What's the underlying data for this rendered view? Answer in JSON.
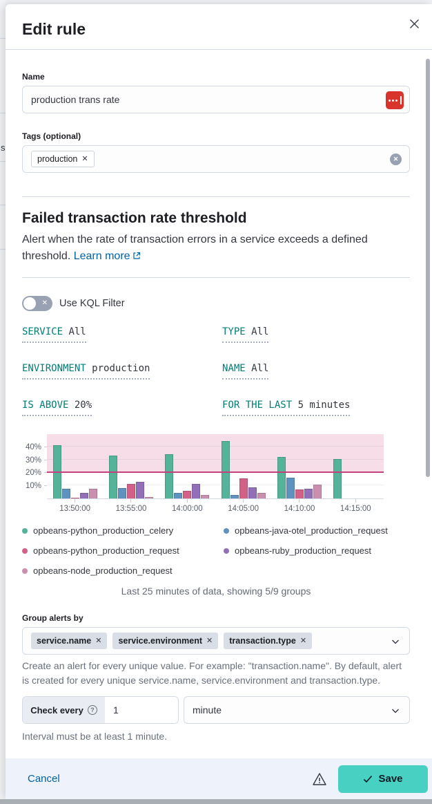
{
  "header": {
    "title": "Edit rule"
  },
  "fields": {
    "name": {
      "label": "Name",
      "value": "production trans rate"
    },
    "tags": {
      "label": "Tags (optional)",
      "tags": [
        "production"
      ]
    }
  },
  "rule": {
    "title": "Failed transaction rate threshold",
    "description": "Alert when the rate of transaction errors in a service exceeds a defined threshold.",
    "learn_more_label": "Learn more"
  },
  "kql_filter": {
    "label": "Use KQL Filter",
    "enabled": false
  },
  "expressions": [
    {
      "label": "SERVICE",
      "value": "All"
    },
    {
      "label": "TYPE",
      "value": "All"
    },
    {
      "label": "ENVIRONMENT",
      "value": "production"
    },
    {
      "label": "NAME",
      "value": "All"
    },
    {
      "label": "IS ABOVE",
      "value": "20%"
    },
    {
      "label": "FOR THE LAST",
      "value": "5 minutes"
    }
  ],
  "chart_data": {
    "type": "bar",
    "categories": [
      "13:50:00",
      "13:55:00",
      "14:00:00",
      "14:05:00",
      "14:10:00",
      "14:15:00"
    ],
    "series": [
      {
        "name": "opbeans-python_production_celery",
        "color": "#54B399",
        "values": [
          41,
          33,
          34,
          44,
          32,
          30.5
        ]
      },
      {
        "name": "opbeans-java-otel_production_request",
        "color": "#6092C0",
        "values": [
          7.5,
          8,
          4.5,
          2.5,
          16,
          0
        ]
      },
      {
        "name": "opbeans-python_production_request",
        "color": "#D36086",
        "values": [
          0.5,
          11,
          6,
          15.5,
          7,
          0
        ]
      },
      {
        "name": "opbeans-ruby_production_request",
        "color": "#9170B8",
        "values": [
          4,
          12.5,
          11,
          8.5,
          7.5,
          0
        ]
      },
      {
        "name": "opbeans-node_production_request",
        "color": "#CA8EAE",
        "values": [
          7.5,
          1,
          2.5,
          4,
          10.5,
          0
        ]
      }
    ],
    "ylabel": "",
    "xlabel": "",
    "ylim": [
      0,
      50
    ],
    "yticks": [
      {
        "value": 10,
        "label": "10%"
      },
      {
        "value": 20,
        "label": "20%"
      },
      {
        "value": 30,
        "label": "30%"
      },
      {
        "value": 40,
        "label": "40%"
      }
    ],
    "threshold": {
      "value": 20,
      "line_color": "#C6417C",
      "band_color": "rgba(204,51,119,0.17)"
    },
    "grid": true,
    "legend_position": "bottom",
    "caption": "Last 25 minutes of data, showing 5/9 groups"
  },
  "group_by": {
    "label": "Group alerts by",
    "values": [
      "service.name",
      "service.environment",
      "transaction.type"
    ],
    "help": "Create an alert for every unique value. For example: \"transaction.name\". By default, alert is created for every unique service.name, service.environment and transaction.type."
  },
  "schedule": {
    "label": "Check every",
    "value": "1",
    "unit": "minute",
    "hint": "Interval must be at least 1 minute."
  },
  "footer": {
    "cancel_label": "Cancel",
    "save_label": "Save"
  },
  "background": {
    "clipped_text": "s"
  },
  "colors": {
    "accent_teal": "#017D73",
    "link_blue": "#0061A6",
    "save_button": "#48D1C2",
    "footer_bg": "#EEF2FB",
    "border": "#D3DAE6",
    "lastpass_red": "#D9342B"
  }
}
